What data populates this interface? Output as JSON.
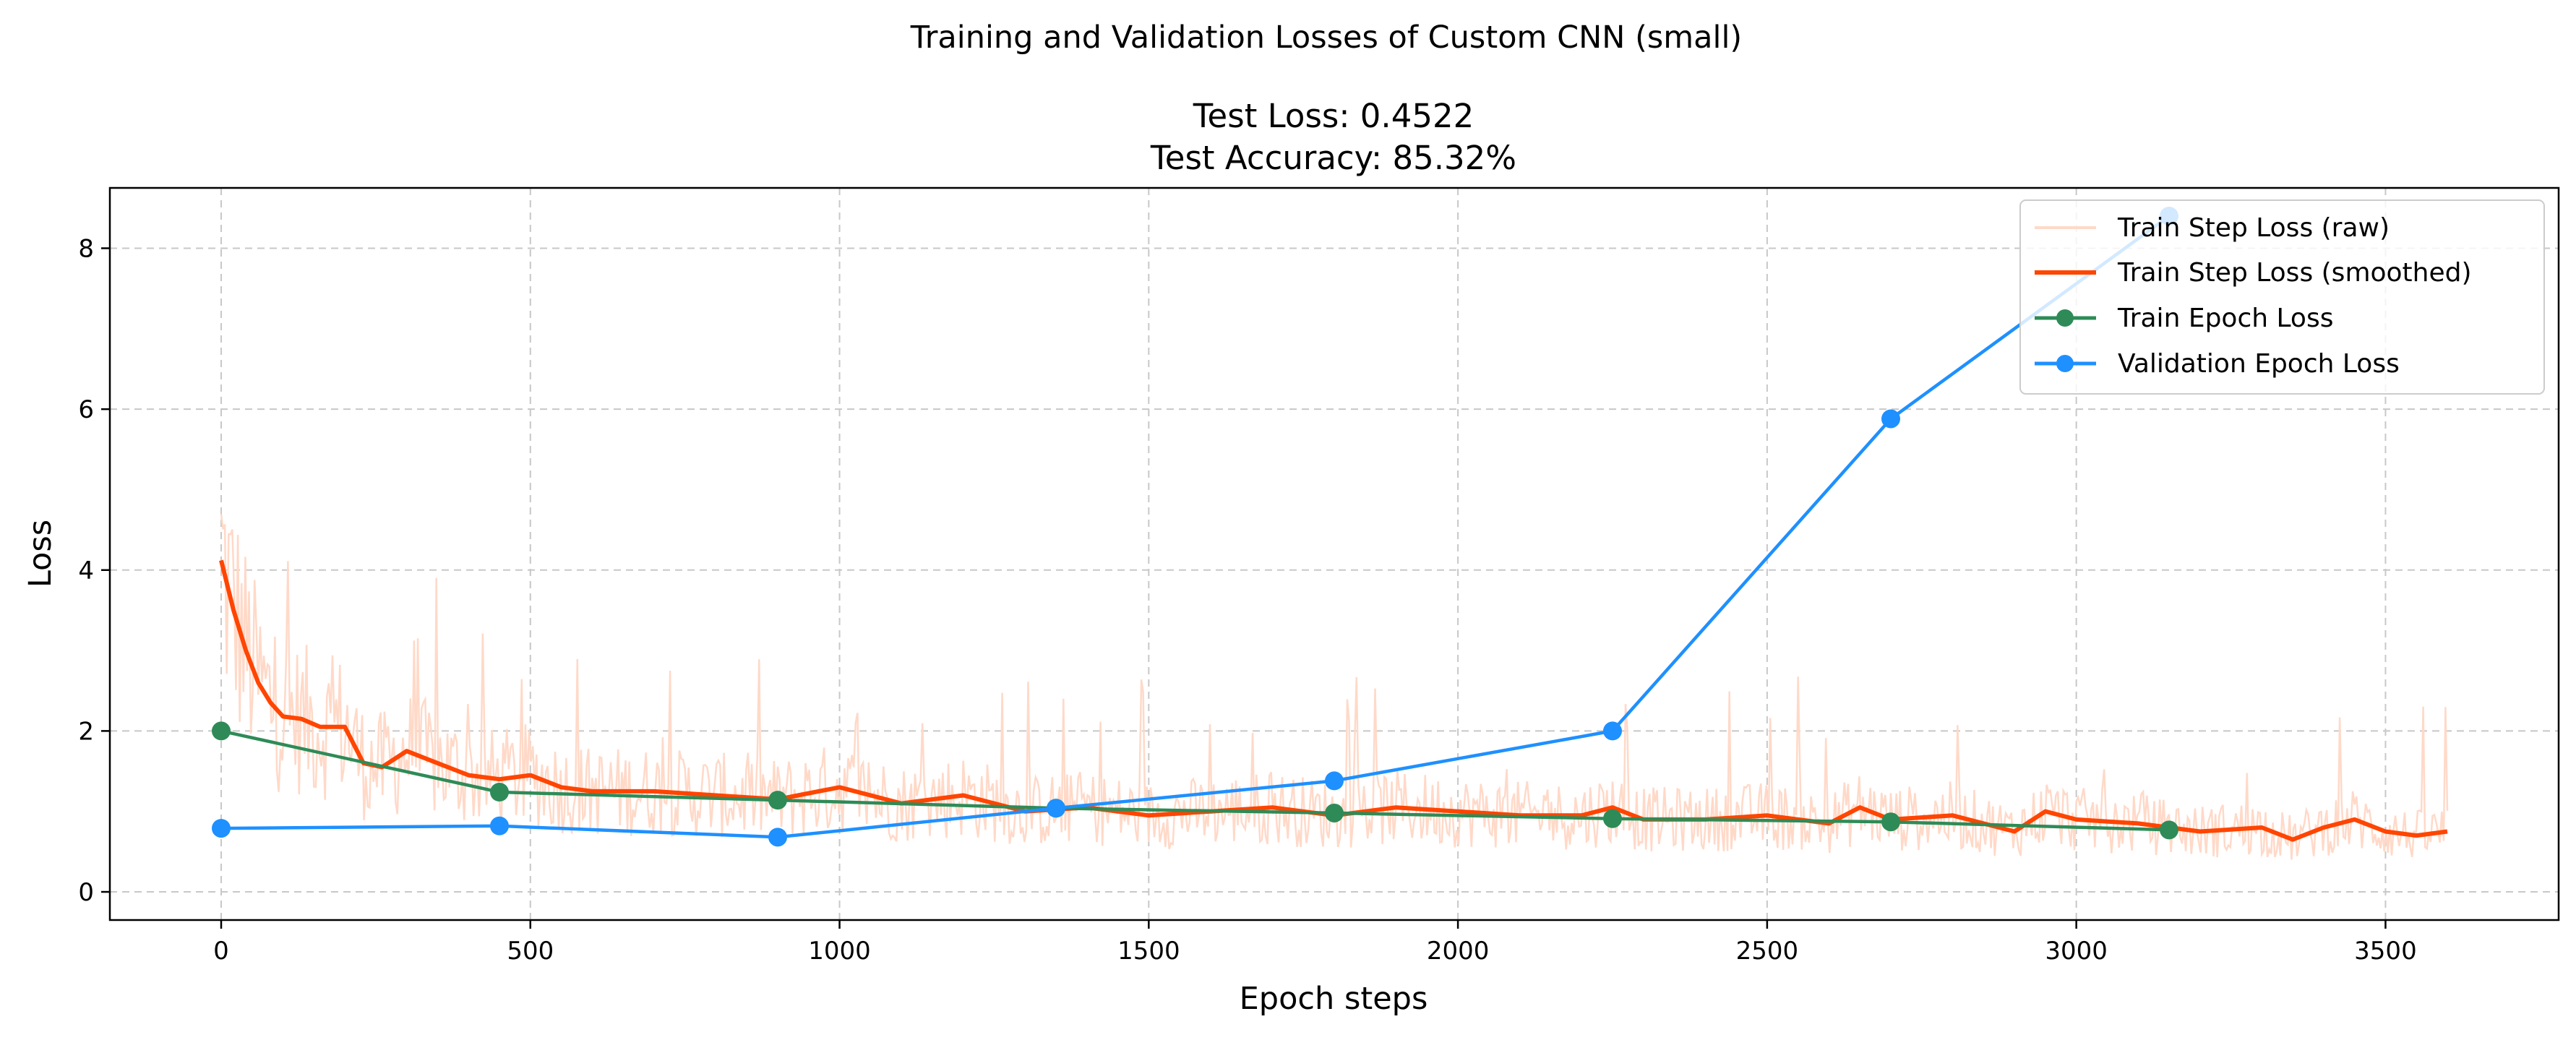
{
  "chart_data": {
    "type": "line",
    "title": "Training and Validation Losses of Custom CNN (small)",
    "subtitle_line1": "Test Loss: 0.4522",
    "subtitle_line2": "Test Accuracy: 85.32%",
    "xlabel": "Epoch steps",
    "ylabel": "Loss",
    "xlim": [
      -180,
      3780
    ],
    "ylim": [
      -0.35,
      8.75
    ],
    "xticks": [
      0,
      500,
      1000,
      1500,
      2000,
      2500,
      3000,
      3500
    ],
    "yticks": [
      0,
      2,
      4,
      6,
      8
    ],
    "grid": true,
    "legend_position": "top-right",
    "series": [
      {
        "name": "Train Step Loss (raw)",
        "color": "#ffd9c8",
        "kind": "line",
        "x_range": [
          0,
          3600
        ],
        "note_values": "noisy per-step loss around the smoothed curve; spikes up to about 5.8 early"
      },
      {
        "name": "Train Step Loss (smoothed)",
        "color": "#ff4500",
        "kind": "line",
        "x": [
          0,
          20,
          40,
          60,
          80,
          100,
          130,
          160,
          200,
          230,
          260,
          300,
          350,
          400,
          450,
          500,
          550,
          600,
          700,
          800,
          900,
          1000,
          1100,
          1200,
          1300,
          1400,
          1500,
          1600,
          1700,
          1800,
          1900,
          2000,
          2100,
          2200,
          2250,
          2300,
          2400,
          2500,
          2600,
          2650,
          2700,
          2800,
          2900,
          2950,
          3000,
          3100,
          3200,
          3300,
          3350,
          3400,
          3450,
          3500,
          3550,
          3600
        ],
        "values": [
          4.12,
          3.5,
          3.0,
          2.6,
          2.35,
          2.18,
          2.15,
          2.05,
          2.05,
          1.6,
          1.55,
          1.75,
          1.6,
          1.45,
          1.4,
          1.45,
          1.3,
          1.25,
          1.25,
          1.2,
          1.15,
          1.3,
          1.1,
          1.2,
          1.0,
          1.05,
          0.95,
          1.0,
          1.05,
          0.95,
          1.05,
          1.0,
          0.95,
          0.95,
          1.05,
          0.9,
          0.9,
          0.95,
          0.85,
          1.05,
          0.9,
          0.95,
          0.75,
          1.0,
          0.9,
          0.85,
          0.75,
          0.8,
          0.65,
          0.8,
          0.9,
          0.75,
          0.7,
          0.75
        ]
      },
      {
        "name": "Train Epoch Loss",
        "color": "#2e8b57",
        "kind": "line-marker",
        "x": [
          0,
          450,
          900,
          1350,
          1800,
          2250,
          2700,
          3150
        ],
        "values": [
          2.0,
          1.24,
          1.14,
          1.04,
          0.98,
          0.91,
          0.87,
          0.77
        ]
      },
      {
        "name": "Validation Epoch Loss",
        "color": "#1e90ff",
        "kind": "line-marker",
        "x": [
          0,
          450,
          900,
          1350,
          1800,
          2250,
          2700,
          3150
        ],
        "values": [
          0.79,
          0.82,
          0.68,
          1.04,
          1.38,
          2.0,
          5.88,
          8.4
        ]
      }
    ]
  }
}
